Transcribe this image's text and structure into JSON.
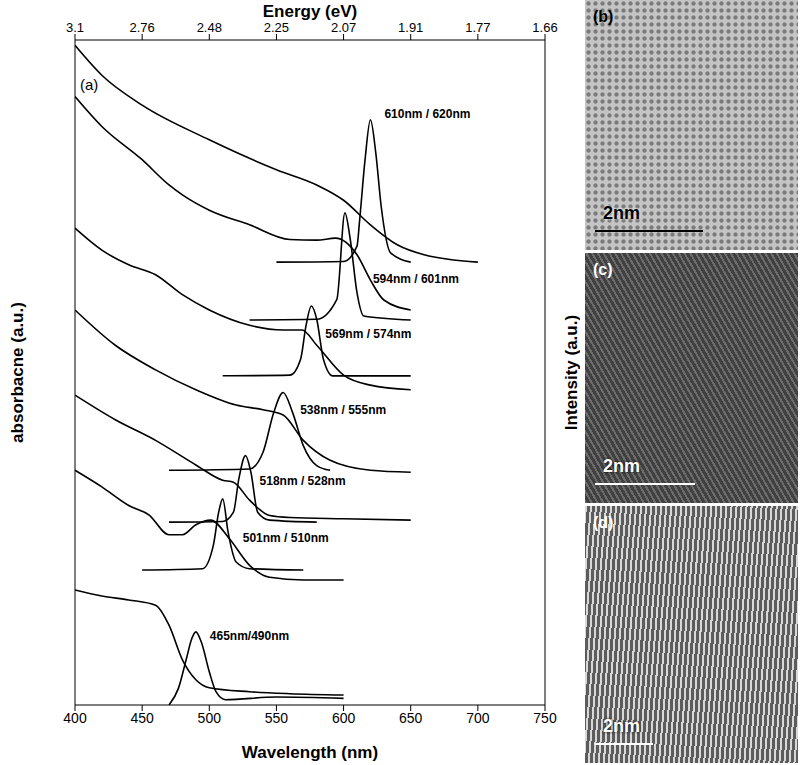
{
  "chart_data": {
    "type": "line",
    "panel": "(a)",
    "xlabel": "Wavelength (nm)",
    "ylabel": "absorbacne (a.u.)",
    "y2label": "Intensity (a.u.)",
    "x2label": "Energy (eV)",
    "xlim": [
      400,
      750
    ],
    "xticks": [
      400,
      450,
      500,
      550,
      600,
      650,
      700,
      750
    ],
    "x2ticks": [
      {
        "value": 400,
        "label": "3.1"
      },
      {
        "value": 450,
        "label": "2.76"
      },
      {
        "value": 500,
        "label": "2.48"
      },
      {
        "value": 550,
        "label": "2.25"
      },
      {
        "value": 600,
        "label": "2.07"
      },
      {
        "value": 650,
        "label": "1.91"
      },
      {
        "value": 700,
        "label": "1.77"
      },
      {
        "value": 750,
        "label": "1.66"
      }
    ],
    "ylim": [
      0,
      10
    ],
    "tick_labels": "x",
    "series": [
      {
        "name": "465nm/490nm",
        "color": "#000000",
        "absorption": {
          "x": [
            400,
            420,
            440,
            460,
            470,
            480,
            490,
            500,
            530,
            560,
            600
          ],
          "values": [
            1.73,
            1.64,
            1.58,
            1.5,
            1.2,
            0.68,
            0.38,
            0.26,
            0.2,
            0.17,
            0.15
          ]
        },
        "emission": {
          "x": [
            470,
            477,
            483,
            487,
            490,
            494,
            500,
            505,
            512,
            550,
            600
          ],
          "values": [
            0,
            0.25,
            0.7,
            1.0,
            1.1,
            0.95,
            0.5,
            0.2,
            0.08,
            0.12,
            0.1
          ]
        }
      },
      {
        "name": "501nm / 510nm",
        "color": "#000000",
        "absorption": {
          "x": [
            400,
            420,
            440,
            455,
            470,
            480,
            490,
            501,
            515,
            530,
            545,
            570,
            600
          ],
          "values": [
            3.53,
            3.28,
            3.0,
            2.86,
            2.56,
            2.56,
            2.71,
            2.78,
            2.5,
            2.1,
            1.92,
            1.88,
            1.88
          ]
        },
        "emission": {
          "x": [
            450,
            495,
            503,
            507,
            510,
            514,
            520,
            530,
            570
          ],
          "values": [
            2.03,
            2.05,
            2.4,
            2.9,
            3.1,
            2.6,
            2.15,
            2.05,
            2.03
          ]
        }
      },
      {
        "name": "518nm / 528nm",
        "color": "#000000",
        "absorption": {
          "x": [
            400,
            430,
            460,
            490,
            510,
            518,
            530,
            545,
            560,
            600,
            650
          ],
          "values": [
            4.66,
            4.29,
            3.98,
            3.61,
            3.38,
            3.35,
            3.08,
            2.85,
            2.82,
            2.8,
            2.78
          ]
        },
        "emission": {
          "x": [
            470,
            510,
            518,
            522,
            527,
            531,
            536,
            545,
            580
          ],
          "values": [
            2.75,
            2.76,
            2.9,
            3.4,
            3.75,
            3.5,
            2.9,
            2.78,
            2.75
          ]
        }
      },
      {
        "name": "538nm / 555nm",
        "color": "#000000",
        "absorption": {
          "x": [
            400,
            430,
            460,
            490,
            520,
            540,
            555,
            570,
            590,
            620,
            650
          ],
          "values": [
            5.94,
            5.41,
            5.04,
            4.74,
            4.51,
            4.44,
            4.36,
            3.98,
            3.68,
            3.53,
            3.5
          ]
        },
        "emission": {
          "x": [
            470,
            530,
            540,
            548,
            555,
            562,
            570,
            580,
            590
          ],
          "values": [
            3.53,
            3.55,
            3.8,
            4.4,
            4.7,
            4.4,
            3.9,
            3.6,
            3.53
          ]
        }
      },
      {
        "name": "569nm / 574nm",
        "color": "#000000",
        "absorption": {
          "x": [
            400,
            420,
            440,
            460,
            480,
            500,
            530,
            555,
            569,
            580,
            600,
            620,
            650
          ],
          "values": [
            7.17,
            6.84,
            6.62,
            6.47,
            6.17,
            5.94,
            5.71,
            5.64,
            5.64,
            5.41,
            4.96,
            4.81,
            4.74
          ]
        },
        "emission": {
          "x": [
            510,
            560,
            568,
            572,
            576,
            580,
            585,
            592,
            650
          ],
          "values": [
            4.95,
            4.96,
            5.2,
            5.7,
            6.0,
            5.8,
            5.2,
            4.95,
            4.95
          ]
        }
      },
      {
        "name": "594nm / 601nm",
        "color": "#000000",
        "absorption": {
          "x": [
            400,
            420,
            450,
            470,
            480,
            500,
            530,
            560,
            580,
            594,
            610,
            620,
            630,
            650
          ],
          "values": [
            9.15,
            8.7,
            8.2,
            7.82,
            7.67,
            7.44,
            7.22,
            7.0,
            6.99,
            7.02,
            6.77,
            6.39,
            6.09,
            5.94
          ]
        },
        "emission": {
          "x": [
            530,
            580,
            595,
            601,
            605,
            610,
            615,
            650
          ],
          "values": [
            5.79,
            5.8,
            6.1,
            7.4,
            7.0,
            6.2,
            5.85,
            5.79
          ]
        }
      },
      {
        "name": "610nm / 620nm",
        "color": "#000000",
        "absorption": {
          "x": [
            400,
            420,
            450,
            500,
            550,
            580,
            600,
            620,
            640,
            660,
            700
          ],
          "values": [
            9.92,
            9.47,
            9.02,
            8.5,
            8.05,
            7.82,
            7.59,
            7.22,
            6.92,
            6.77,
            6.66
          ]
        },
        "emission": {
          "x": [
            550,
            600,
            610,
            612,
            616,
            620,
            624,
            628,
            635,
            650
          ],
          "values": [
            6.66,
            6.67,
            6.9,
            7.3,
            8.2,
            8.8,
            8.3,
            7.5,
            6.8,
            6.66
          ]
        }
      }
    ]
  },
  "images": [
    {
      "label": "(b)",
      "scale_bar": "2nm"
    },
    {
      "label": "(c)",
      "scale_bar": "2nm"
    },
    {
      "label": "(d)",
      "scale_bar": "2nm"
    }
  ]
}
